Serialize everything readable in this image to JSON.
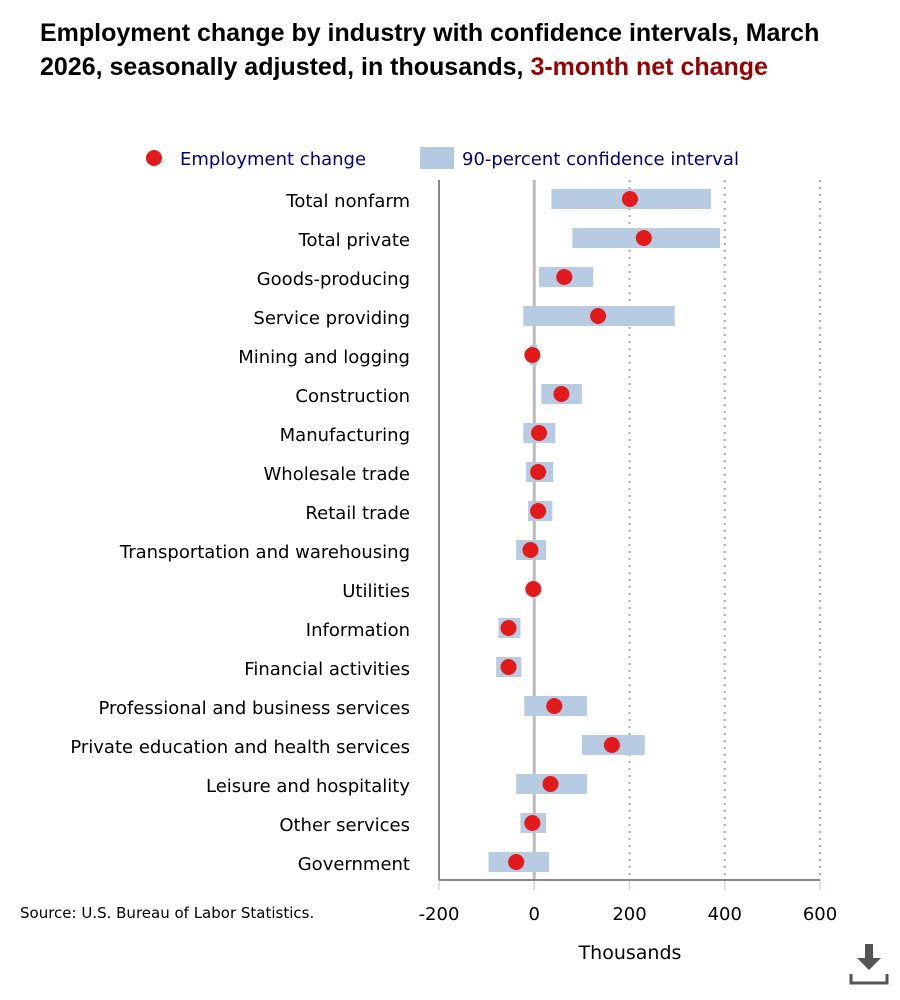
{
  "title": {
    "main": "Employment change by industry with confidence intervals, March 2026, seasonally adjusted, in thousands, ",
    "highlight": "3-month net change"
  },
  "source": "Source: U.S. Bureau of Labor Statistics.",
  "colors": {
    "point": "#e31a1c",
    "interval": "#b3c9e1",
    "legend_text": "#000080",
    "title_highlight": "#990000"
  },
  "icons": {
    "download": "download-icon"
  },
  "chart_data": {
    "type": "scatter",
    "orientation": "horizontal",
    "xlabel": "Thousands",
    "xlim": [
      -200,
      600
    ],
    "xticks": [
      -200,
      0,
      200,
      400,
      600
    ],
    "grid": "vertical dotted",
    "legend": {
      "placement": "top",
      "entries": [
        "Employment change",
        "90-percent confidence interval"
      ]
    },
    "categories": [
      "Total nonfarm",
      "Total private",
      "Goods-producing",
      "Service providing",
      "Mining and logging",
      "Construction",
      "Manufacturing",
      "Wholesale trade",
      "Retail trade",
      "Transportation and warehousing",
      "Utilities",
      "Information",
      "Financial activities",
      "Professional and business services",
      "Private education and health services",
      "Leisure and hospitality",
      "Other services",
      "Government"
    ],
    "series": [
      {
        "name": "Employment change",
        "values": [
          201,
          230,
          63,
          134,
          -4,
          57,
          10,
          8,
          8,
          -8,
          -2,
          -54,
          -54,
          42,
          163,
          34,
          -4,
          -38
        ]
      },
      {
        "name": "90-percent confidence interval",
        "low": [
          36,
          80,
          10,
          -23,
          -10,
          15,
          -23,
          -17,
          -13,
          -38,
          -5,
          -75,
          -80,
          -21,
          100,
          -38,
          -29,
          -96
        ],
        "high": [
          371,
          390,
          124,
          295,
          6,
          100,
          44,
          40,
          38,
          25,
          2,
          -29,
          -27,
          111,
          232,
          111,
          25,
          31
        ]
      }
    ]
  }
}
